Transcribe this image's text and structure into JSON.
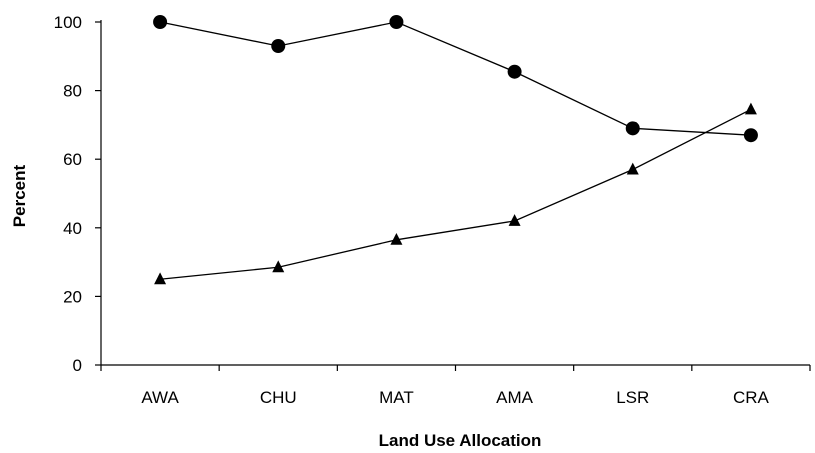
{
  "chart_data": {
    "type": "line",
    "title": "",
    "xlabel": "Land Use Allocation",
    "ylabel": "Percent",
    "categories": [
      "AWA",
      "CHU",
      "MAT",
      "AMA",
      "LSR",
      "CRA"
    ],
    "ylim": [
      0,
      100
    ],
    "yticks": [
      0,
      20,
      40,
      60,
      80,
      100
    ],
    "grid": false,
    "legend": "none",
    "series": [
      {
        "marker": "circle",
        "color": "#000000",
        "values": [
          100,
          93,
          100,
          85.5,
          69,
          67
        ]
      },
      {
        "marker": "triangle",
        "color": "#000000",
        "values": [
          25,
          28.5,
          36.5,
          42,
          57,
          74.5
        ]
      }
    ]
  }
}
